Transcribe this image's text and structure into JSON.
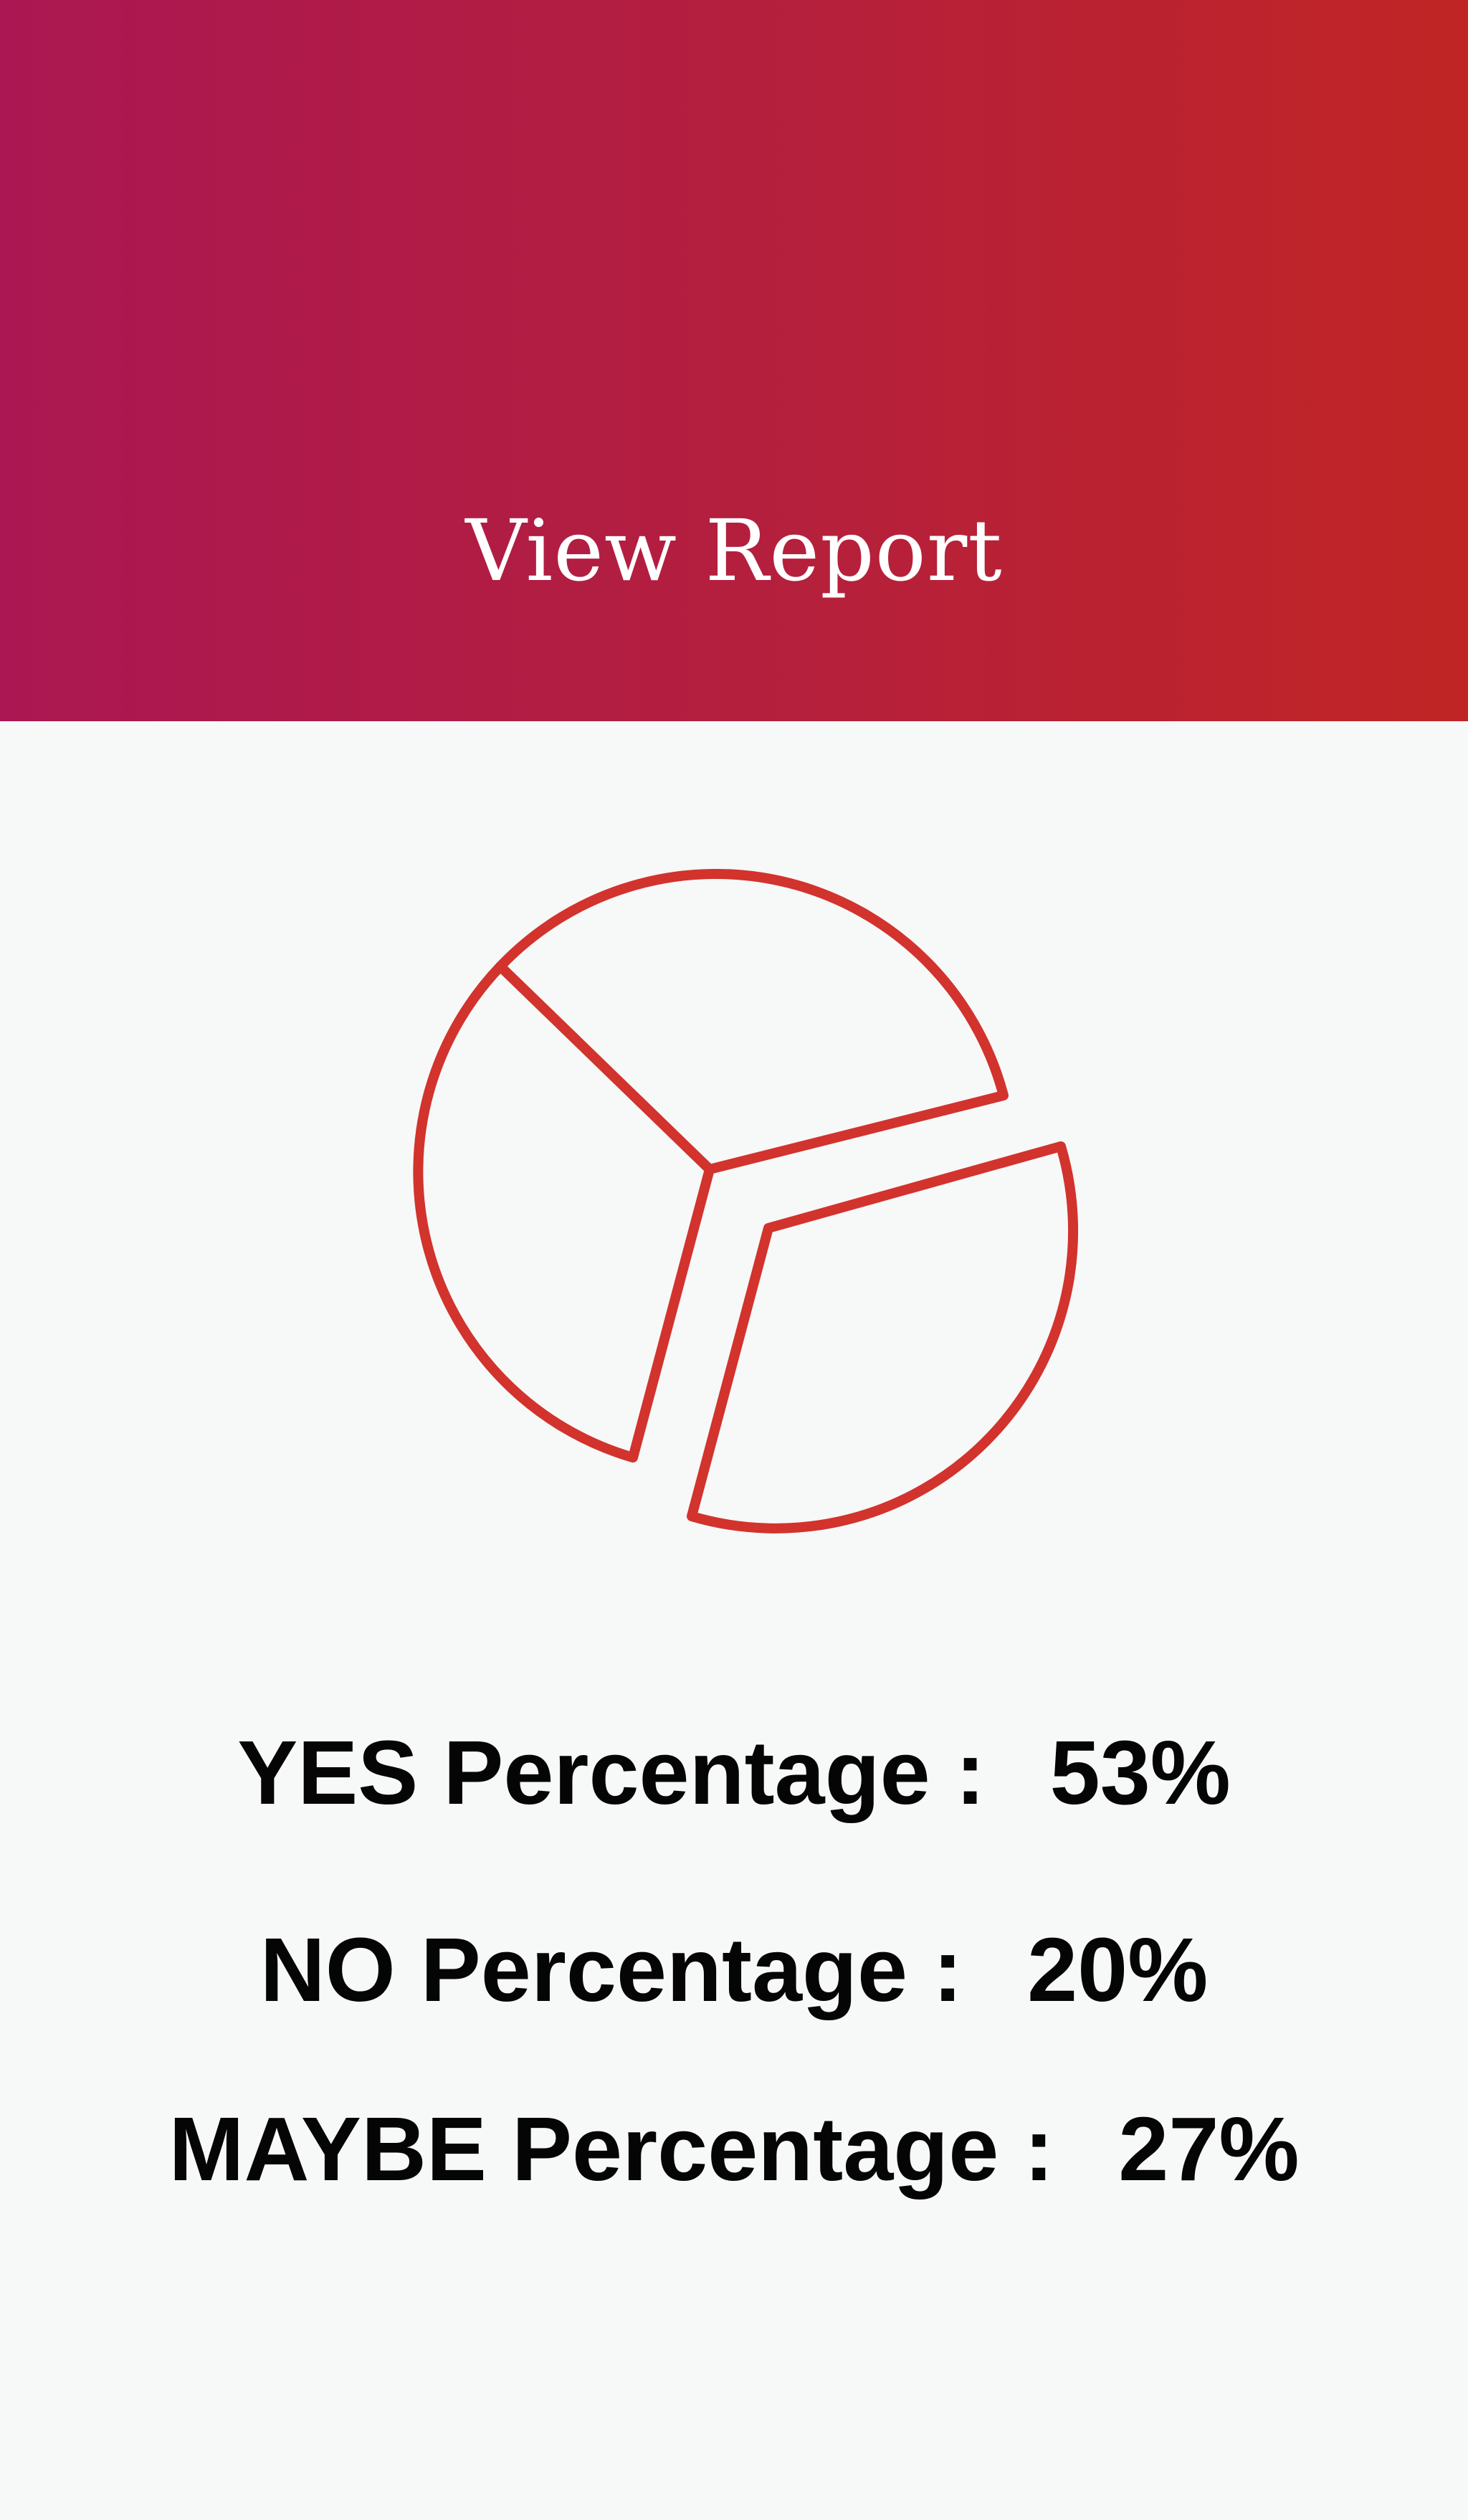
{
  "header": {
    "title": "View Report",
    "gradient": [
      "#ab1752",
      "#c02525"
    ]
  },
  "report_icon": {
    "icon": "pie-chart-icon",
    "stroke_color": "#d2332d"
  },
  "stats": [
    {
      "label": "YES Percentage :",
      "value": "53%"
    },
    {
      "label": "NO Percentage :",
      "value": "20%"
    },
    {
      "label": "MAYBE Percentage :",
      "value": "27%"
    }
  ]
}
